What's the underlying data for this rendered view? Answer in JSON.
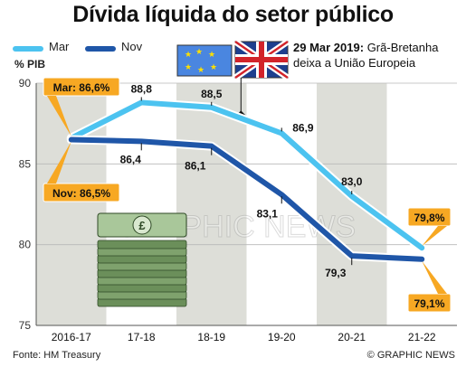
{
  "title": "Dívida líquida do setor público",
  "legend": [
    {
      "name": "Mar",
      "color": "#4cc3f0"
    },
    {
      "name": "Nov",
      "color": "#1f56a8"
    }
  ],
  "ylabel": "% PIB",
  "annotation": {
    "date": "29 Mar 2019:",
    "text": "Grã-Bretanha deixa a União Europeia"
  },
  "source": "Fonte: HM Treasury",
  "credit": "© GRAPHIC NEWS",
  "watermark": "GRAPHIC NEWS",
  "colors": {
    "mar": "#4cc3f0",
    "nov": "#1f56a8",
    "callout": "#f7a823",
    "band": "#ddded8"
  },
  "chart_data": {
    "type": "line",
    "categories": [
      "2016-17",
      "17-18",
      "18-19",
      "19-20",
      "20-21",
      "21-22"
    ],
    "ylim": [
      75,
      90
    ],
    "yticks": [
      75,
      80,
      85,
      90
    ],
    "series": [
      {
        "name": "Mar",
        "values": [
          86.6,
          88.8,
          88.5,
          86.9,
          83.0,
          79.8
        ]
      },
      {
        "name": "Nov",
        "values": [
          86.5,
          86.4,
          86.1,
          83.1,
          79.3,
          79.1
        ]
      }
    ],
    "labels": {
      "mar": [
        "Mar: 86,6%",
        "88,8",
        "88,5",
        "86,9",
        "83,0",
        "79,8%"
      ],
      "nov": [
        "Nov: 86,5%",
        "86,4",
        "86,1",
        "83,1",
        "79,3",
        "79,1%"
      ]
    },
    "annotation_x": "18-19"
  }
}
